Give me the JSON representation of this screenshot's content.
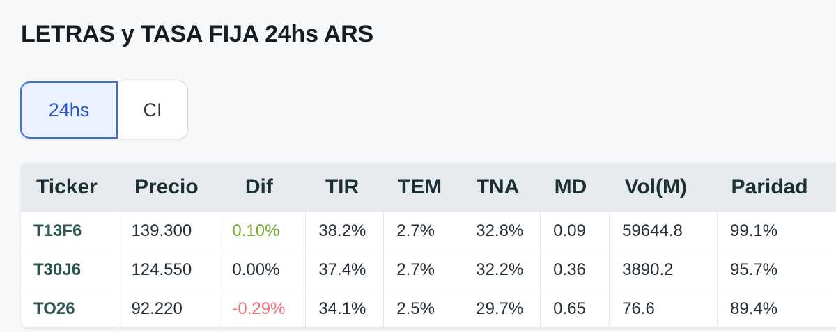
{
  "page": {
    "title": "LETRAS y TASA FIJA 24hs ARS"
  },
  "settlement_toggle": {
    "options": [
      {
        "label": "24hs",
        "selected": true
      },
      {
        "label": "CI",
        "selected": false
      }
    ]
  },
  "table": {
    "columns": [
      "Ticker",
      "Precio",
      "Dif",
      "TIR",
      "TEM",
      "TNA",
      "MD",
      "Vol(M)",
      "Paridad"
    ],
    "rows": [
      {
        "ticker": "T13F6",
        "precio": "139.300",
        "dif": "0.10%",
        "dif_trend": "up",
        "tir": "38.2%",
        "tem": "2.7%",
        "tna": "32.8%",
        "md": "0.09",
        "vol": "59644.8",
        "paridad": "99.1%"
      },
      {
        "ticker": "T30J6",
        "precio": "124.550",
        "dif": "0.00%",
        "dif_trend": "flat",
        "tir": "37.4%",
        "tem": "2.7%",
        "tna": "32.2%",
        "md": "0.36",
        "vol": "3890.2",
        "paridad": "95.7%"
      },
      {
        "ticker": "TO26",
        "precio": "92.220",
        "dif": "-0.29%",
        "dif_trend": "down",
        "tir": "34.1%",
        "tem": "2.5%",
        "tna": "29.7%",
        "md": "0.65",
        "vol": "76.6",
        "paridad": "89.4%"
      }
    ]
  },
  "colors": {
    "positive": "#78a82a",
    "negative": "#ef6f7c",
    "accent": "#3b6fd8"
  }
}
